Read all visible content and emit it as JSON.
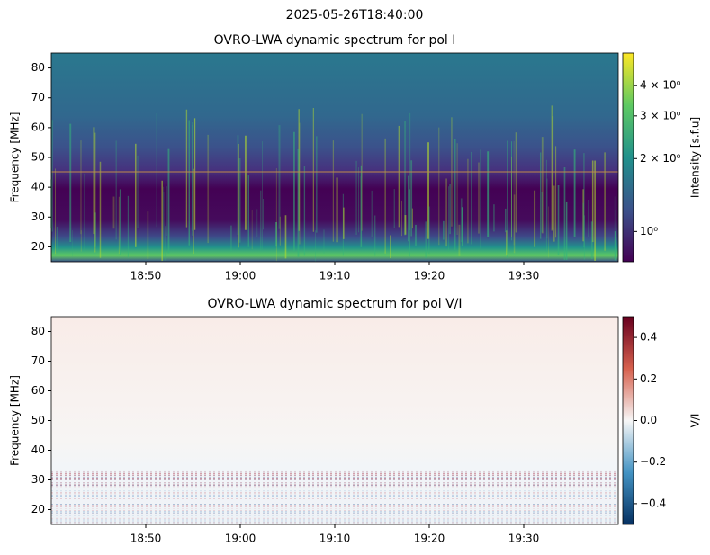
{
  "title": "2025-05-26T18:40:00",
  "chart_data": [
    {
      "type": "heatmap",
      "title": "OVRO-LWA dynamic spectrum for pol I",
      "ylabel": "Frequency [MHz]",
      "xlim": [
        "18:40",
        "19:40"
      ],
      "xticks": [
        "18:50",
        "19:00",
        "19:10",
        "19:20",
        "19:30"
      ],
      "ylim": [
        15,
        85
      ],
      "yticks": [
        20,
        30,
        40,
        50,
        60,
        70,
        80
      ],
      "colorbar": {
        "label": "Intensity [s.f.u]",
        "colormap": "viridis",
        "scale": "log",
        "lim": [
          0.75,
          5.45
        ],
        "ticks": [
          {
            "value": 1,
            "label": "10⁰"
          },
          {
            "value": 2,
            "label": "2 × 10⁰"
          },
          {
            "value": 3,
            "label": "3 × 10⁰"
          },
          {
            "value": 4,
            "label": "4 × 10⁰"
          }
        ]
      }
    },
    {
      "type": "heatmap",
      "title": "OVRO-LWA dynamic spectrum for pol V/I",
      "ylabel": "Frequency [MHz]",
      "xlim": [
        "18:40",
        "19:40"
      ],
      "xticks": [
        "18:50",
        "19:00",
        "19:10",
        "19:20",
        "19:30"
      ],
      "ylim": [
        15,
        85
      ],
      "yticks": [
        20,
        30,
        40,
        50,
        60,
        70,
        80
      ],
      "colorbar": {
        "label": "V/I",
        "colormap": "RdBu_r",
        "scale": "linear",
        "lim": [
          -0.5,
          0.5
        ],
        "ticks": [
          {
            "value": -0.4,
            "label": "−0.4"
          },
          {
            "value": -0.2,
            "label": "−0.2"
          },
          {
            "value": 0,
            "label": "0.0"
          },
          0.2,
          0.4
        ]
      }
    }
  ]
}
